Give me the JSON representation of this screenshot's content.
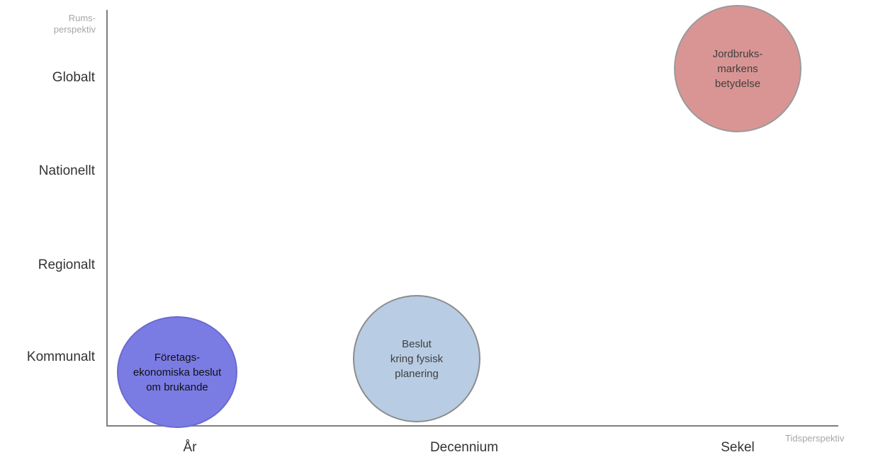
{
  "axes": {
    "y_title": "Rums-\nperspektiv",
    "x_title": "Tidsperspektiv",
    "y_ticks": [
      "Globalt",
      "Nationellt",
      "Regionalt",
      "Kommunalt"
    ],
    "x_ticks": [
      "År",
      "Decennium",
      "Sekel"
    ]
  },
  "bubbles": [
    {
      "label": "Företags-\nekonomiska beslut\nom brukande",
      "x": "År",
      "y": "Kommunalt",
      "fill": "#7b7be4",
      "stroke": "#6a6ad0",
      "text_color": "#111111"
    },
    {
      "label": "Beslut\nkring fysisk\nplanering",
      "x": "Decennium",
      "y": "Kommunalt",
      "fill": "#b8cce4",
      "stroke": "#8c8c8c",
      "text_color": "#404040"
    },
    {
      "label": "Jordbruks-\nmarkens\nbetydelse",
      "x": "Sekel",
      "y": "Globalt",
      "fill": "#d99594",
      "stroke": "#9a9a9a",
      "text_color": "#404040"
    }
  ]
}
